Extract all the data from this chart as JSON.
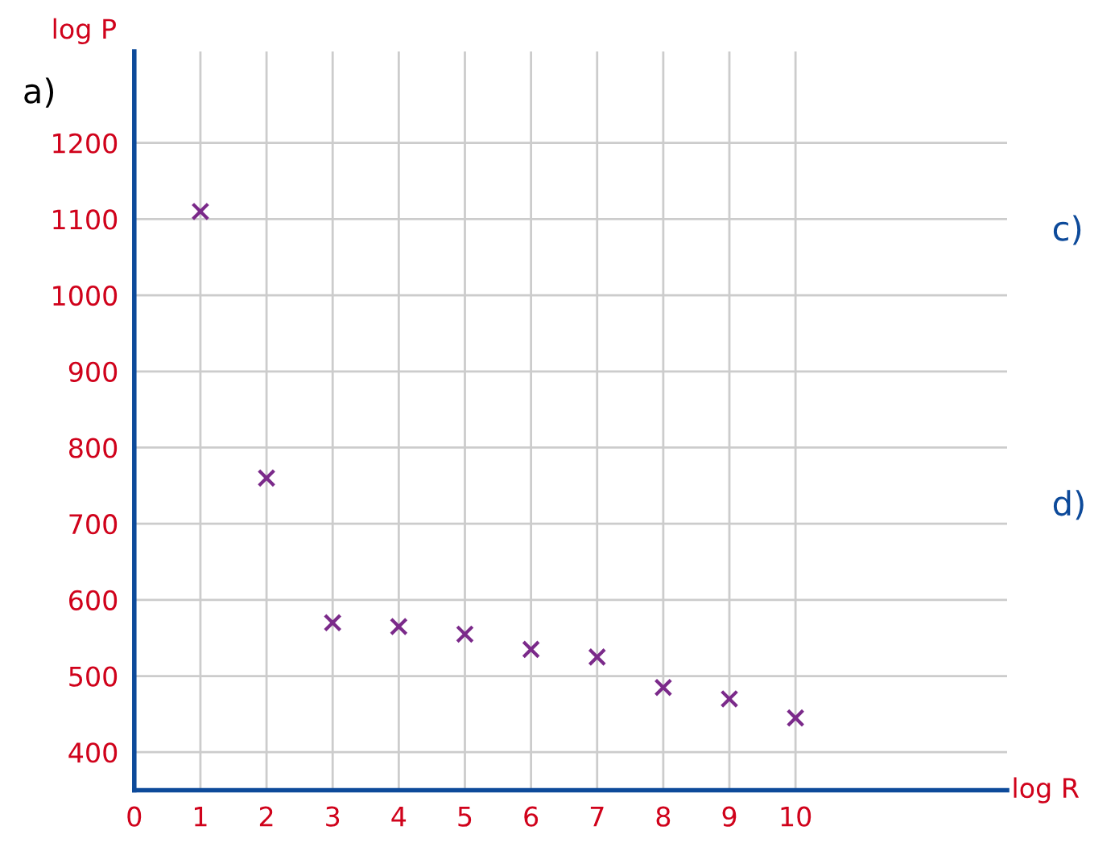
{
  "chart_data": {
    "type": "scatter",
    "xlabel": "log R",
    "ylabel": "log P",
    "x": [
      1,
      2,
      3,
      4,
      5,
      6,
      7,
      8,
      9,
      10
    ],
    "series": [
      {
        "color": "#7b2a8a",
        "values": [
          1110,
          760,
          570,
          565,
          555,
          535,
          525,
          485,
          470,
          445
        ]
      }
    ],
    "marker": "cross",
    "xlim": [
      0,
      13.2
    ],
    "xticks": [
      0,
      1,
      2,
      3,
      4,
      5,
      6,
      7,
      8,
      9,
      10
    ],
    "ylim": [
      350,
      1320
    ],
    "yticks": [
      400,
      500,
      600,
      700,
      800,
      900,
      1000,
      1100,
      1200
    ],
    "grid": true,
    "annotations": [
      "a)",
      "c)",
      "d)"
    ]
  }
}
